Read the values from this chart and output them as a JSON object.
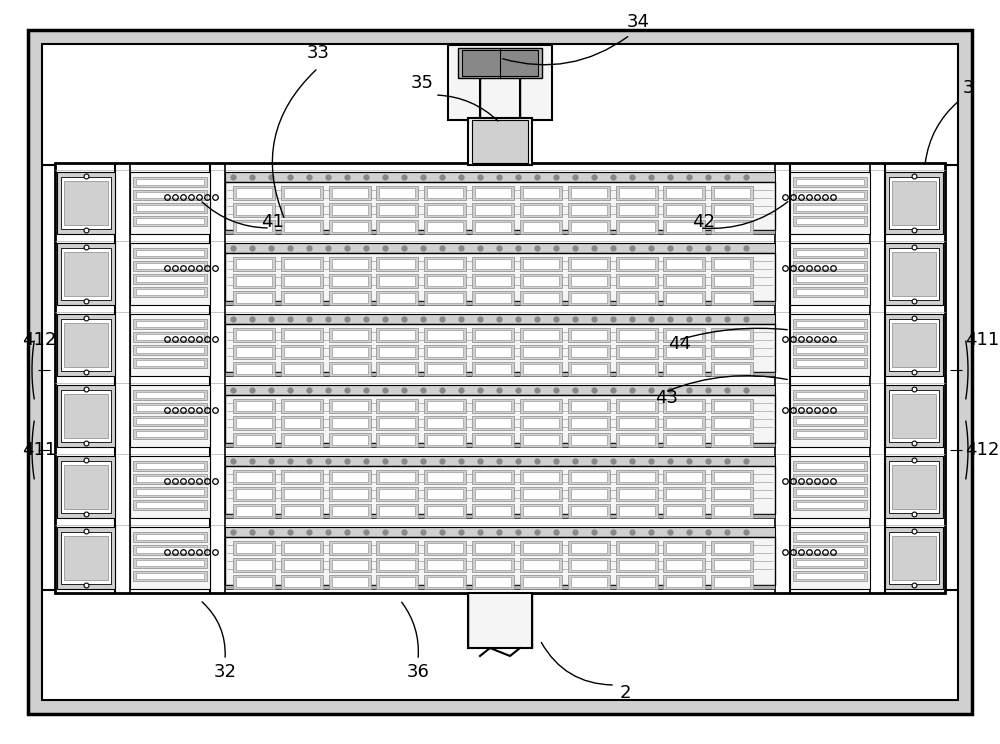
{
  "bg_color": "#ffffff",
  "lc": "#000000",
  "gray1": "#d0d0d0",
  "gray2": "#b0b0b0",
  "gray3": "#888888",
  "gray4": "#606060",
  "fill_outer": "#e8e8e8",
  "fill_inner": "#f5f5f5",
  "figsize": [
    10.0,
    7.44
  ],
  "dpi": 100
}
